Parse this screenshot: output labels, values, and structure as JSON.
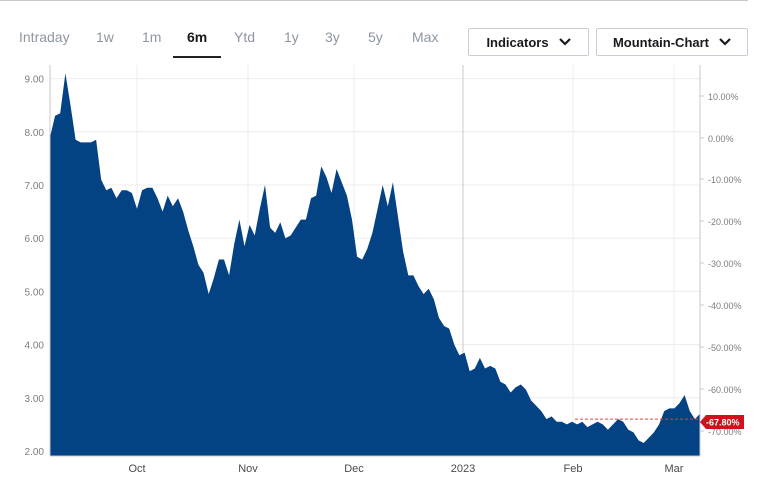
{
  "toolbar": {
    "tabs": [
      "Intraday",
      "1w",
      "1m",
      "6m",
      "Ytd",
      "1y",
      "3y",
      "5y",
      "Max"
    ],
    "active_tab": "6m",
    "indicators_label": "Indicators",
    "chart_type_label": "Mountain-Chart"
  },
  "icons": {
    "dropdown": "chevron-down-icon"
  },
  "colors": {
    "area": "#034283",
    "badge": "#d0101b",
    "reference_line": "#e2463c",
    "axis_text": "#7d7d7d",
    "grid": "#ececec"
  },
  "chart_data": {
    "type": "area",
    "yaxis_left": {
      "ticks": [
        "2.00",
        "3.00",
        "4.00",
        "5.00",
        "6.00",
        "7.00",
        "8.00",
        "9.00"
      ],
      "range": [
        1.9,
        9.6
      ]
    },
    "yaxis_right": {
      "ticks": [
        "10.00%",
        "0.00%",
        "-10.00%",
        "-20.00%",
        "-30.00%",
        "-40.00%",
        "-50.00%",
        "-60.00%",
        "-70.00%"
      ]
    },
    "xaxis": {
      "labels": [
        "Oct",
        "Nov",
        "Dec",
        "2023",
        "Feb",
        "Mar"
      ]
    },
    "current_change": "-67.80%",
    "reference_value": 2.6,
    "grid": true,
    "series": [
      {
        "values": [
          7.9,
          8.3,
          8.35,
          9.1,
          8.5,
          7.85,
          7.8,
          7.8,
          7.8,
          7.85,
          7.1,
          6.9,
          6.95,
          6.75,
          6.9,
          6.9,
          6.85,
          6.55,
          6.9,
          6.95,
          6.95,
          6.75,
          6.5,
          6.8,
          6.6,
          6.75,
          6.5,
          6.15,
          5.85,
          5.5,
          5.35,
          4.95,
          5.25,
          5.6,
          5.6,
          5.3,
          5.9,
          6.35,
          5.85,
          6.25,
          6.05,
          6.55,
          7.0,
          6.2,
          6.1,
          6.3,
          6.0,
          6.05,
          6.2,
          6.35,
          6.35,
          6.75,
          6.8,
          7.35,
          7.15,
          6.85,
          7.3,
          7.05,
          6.8,
          6.35,
          5.65,
          5.6,
          5.8,
          6.1,
          6.55,
          7.0,
          6.6,
          7.05,
          6.4,
          5.75,
          5.3,
          5.3,
          5.1,
          4.95,
          5.05,
          4.85,
          4.5,
          4.35,
          4.3,
          4.0,
          3.8,
          3.85,
          3.5,
          3.55,
          3.75,
          3.55,
          3.6,
          3.55,
          3.3,
          3.25,
          3.1,
          3.2,
          3.25,
          3.15,
          2.95,
          2.85,
          2.75,
          2.6,
          2.65,
          2.55,
          2.55,
          2.5,
          2.55,
          2.5,
          2.55,
          2.45,
          2.5,
          2.55,
          2.5,
          2.4,
          2.5,
          2.6,
          2.55,
          2.4,
          2.35,
          2.2,
          2.15,
          2.25,
          2.35,
          2.5,
          2.75,
          2.8,
          2.8,
          2.9,
          3.05,
          2.75,
          2.6,
          2.7
        ]
      }
    ]
  }
}
